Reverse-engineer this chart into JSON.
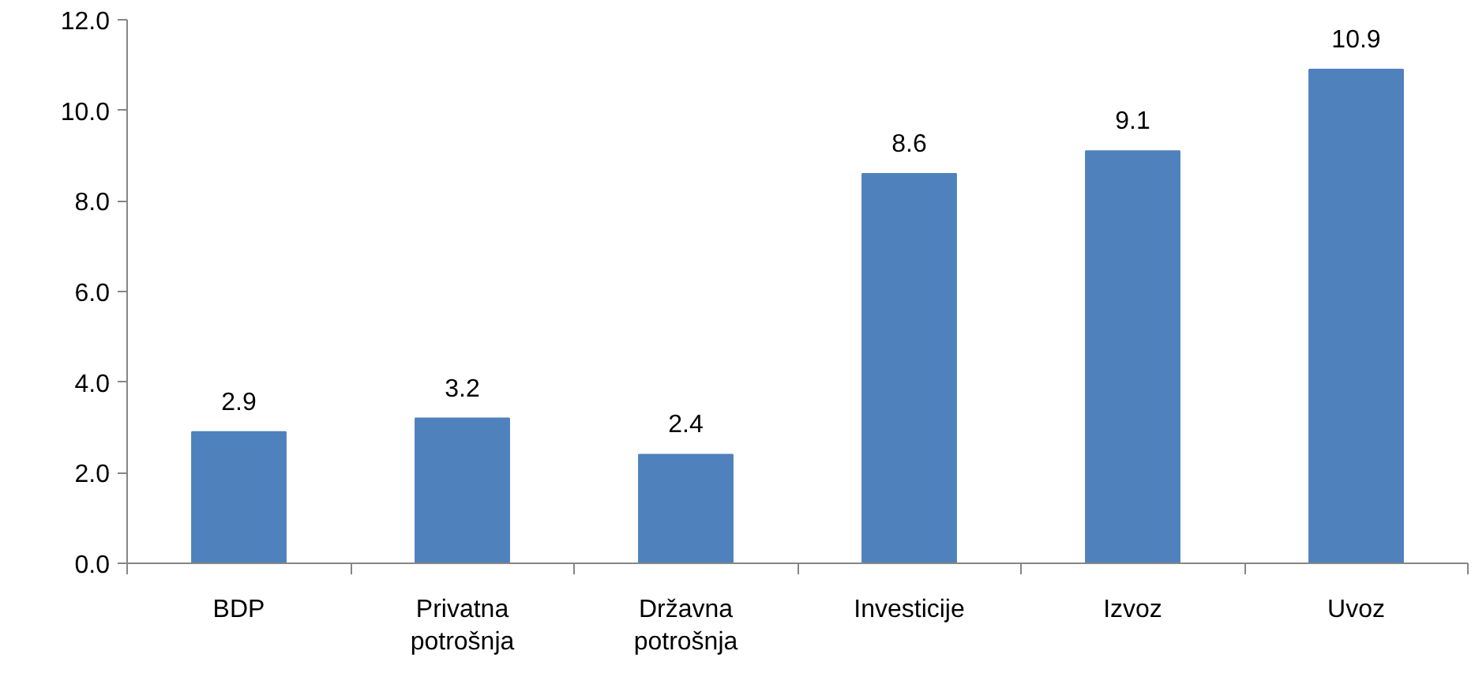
{
  "chart_data": {
    "type": "bar",
    "categories": [
      "BDP",
      "Privatna potrošnja",
      "Državna potrošnja",
      "Investicije",
      "Izvoz",
      "Uvoz"
    ],
    "values": [
      2.9,
      3.2,
      2.4,
      8.6,
      9.1,
      10.9
    ],
    "color": "#4f81bd",
    "ylim": [
      0,
      12
    ],
    "yticks": [
      {
        "value": 0,
        "label": "0.0"
      },
      {
        "value": 2,
        "label": "2.0"
      },
      {
        "value": 4,
        "label": "4.0"
      },
      {
        "value": 6,
        "label": "6.0"
      },
      {
        "value": 8,
        "label": "8.0"
      },
      {
        "value": 10,
        "label": "10.0"
      },
      {
        "value": 12,
        "label": "12.0"
      }
    ],
    "data_labels": true,
    "grid": false
  }
}
